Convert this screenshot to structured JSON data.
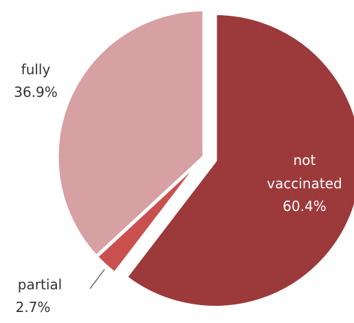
{
  "chart_data": {
    "type": "pie",
    "title": "",
    "slices": [
      {
        "label_lines": [
          "not",
          "vaccinated"
        ],
        "value": 60.4,
        "value_text": "60.4%",
        "color": "#9c3a3b",
        "label_color": "#ffffff",
        "exploded": true
      },
      {
        "label_lines": [
          "partial"
        ],
        "value": 2.7,
        "value_text": "2.7%",
        "color": "#c9504f",
        "label_color": "#333333",
        "exploded": false
      },
      {
        "label_lines": [
          "fully"
        ],
        "value": 36.9,
        "value_text": "36.9%",
        "color": "#d7a0a2",
        "label_color": "#333333",
        "exploded": false
      }
    ]
  }
}
